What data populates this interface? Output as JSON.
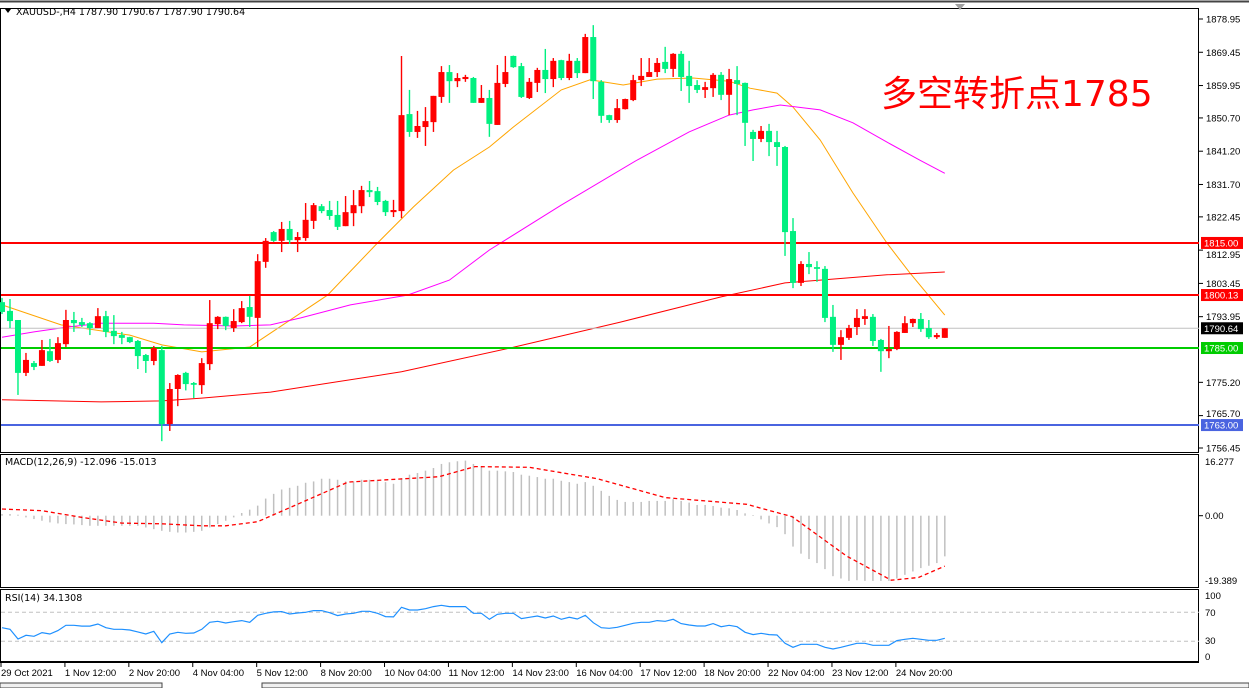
{
  "header": {
    "symbol_line": "XAUUSD-,H4  1787.90 1790.67 1787.90 1790.64",
    "menu_icon": "triangle-down-icon"
  },
  "annotation": {
    "text": "多空转折点1785",
    "color": "#ff0000"
  },
  "colors": {
    "up": "#ff0000",
    "down": "#00f080",
    "ma_fast": "#ffa500",
    "ma_mid": "#ff00ff",
    "ma_slow": "#ff0000",
    "macd_hist": "#c0c0c0",
    "macd_signal": "#ff0000",
    "rsi": "#1e90ff"
  },
  "price_axis": {
    "ticks": [
      "1878.95",
      "1869.45",
      "1859.95",
      "1850.70",
      "1841.20",
      "1831.70",
      "1822.45",
      "1812.95",
      "1803.45",
      "1793.95",
      "1775.20",
      "1765.70",
      "1756.45"
    ],
    "range": [
      1756.45,
      1878.95
    ]
  },
  "levels": [
    {
      "price": 1815.0,
      "label": "1815.00",
      "color": "#ff0000"
    },
    {
      "price": 1800.13,
      "label": "1800.13",
      "color": "#ff0000"
    },
    {
      "price": 1785.0,
      "label": "1785.00",
      "color": "#00cc00"
    },
    {
      "price": 1763.0,
      "label": "1763.00",
      "color": "#4a64e0"
    }
  ],
  "current_price": {
    "price": 1790.64,
    "label": "1790.64",
    "line_color": "#c0c0c0",
    "tag_color": "#000000"
  },
  "time_axis": {
    "labels": [
      "29 Oct 2021",
      "1 Nov 12:00",
      "2 Nov 20:00",
      "4 Nov 04:00",
      "5 Nov 12:00",
      "8 Nov 20:00",
      "10 Nov 04:00",
      "11 Nov 12:00",
      "14 Nov 23:00",
      "16 Nov 04:00",
      "17 Nov 12:00",
      "18 Nov 20:00",
      "22 Nov 04:00",
      "23 Nov 12:00",
      "24 Nov 20:00"
    ],
    "bars_per_label": 8
  },
  "macd": {
    "label": "MACD(12,26,9) -12.096 -15.013",
    "axis": [
      "16.277",
      "0.00",
      "-19.389"
    ],
    "range": [
      -19.389,
      16.277
    ]
  },
  "rsi": {
    "label": "RSI(14) 34.1308",
    "axis": [
      "100",
      "70",
      "30",
      "0"
    ],
    "levels": [
      70,
      30
    ]
  },
  "chart_data": {
    "type": "candlestick",
    "symbol": "XAUUSD-",
    "timeframe": "H4",
    "ylim": [
      1756.45,
      1878.95
    ],
    "candles_ohlc": [
      [
        1798.1,
        1799.3,
        1794.7,
        1795.3
      ],
      [
        1795.6,
        1799.0,
        1790.7,
        1792.7
      ],
      [
        1793.0,
        1793.0,
        1771.6,
        1777.9
      ],
      [
        1777.9,
        1783.6,
        1777.0,
        1781.6
      ],
      [
        1780.7,
        1781.3,
        1778.7,
        1779.6
      ],
      [
        1779.9,
        1787.3,
        1779.9,
        1784.4
      ],
      [
        1784.1,
        1787.6,
        1781.0,
        1781.3
      ],
      [
        1781.6,
        1788.1,
        1780.7,
        1786.4
      ],
      [
        1786.1,
        1795.9,
        1785.3,
        1793.0
      ],
      [
        1793.0,
        1795.3,
        1789.6,
        1792.1
      ],
      [
        1792.4,
        1793.6,
        1791.0,
        1791.6
      ],
      [
        1792.1,
        1792.4,
        1788.7,
        1790.7
      ],
      [
        1790.7,
        1796.4,
        1790.7,
        1794.1
      ],
      [
        1794.1,
        1795.6,
        1788.1,
        1789.6
      ],
      [
        1789.9,
        1794.4,
        1786.1,
        1788.4
      ],
      [
        1788.7,
        1789.6,
        1786.1,
        1787.9
      ],
      [
        1788.1,
        1788.2,
        1786.4,
        1786.7
      ],
      [
        1787.0,
        1787.3,
        1779.0,
        1782.7
      ],
      [
        1783.0,
        1783.3,
        1777.9,
        1781.3
      ],
      [
        1781.3,
        1785.6,
        1780.1,
        1785.0
      ],
      [
        1784.4,
        1785.6,
        1758.4,
        1763.3
      ],
      [
        1763.3,
        1775.0,
        1761.3,
        1773.3
      ],
      [
        1773.3,
        1777.5,
        1768.4,
        1777.3
      ],
      [
        1777.9,
        1778.2,
        1772.9,
        1774.7
      ],
      [
        1775.0,
        1775.3,
        1770.7,
        1774.5
      ],
      [
        1774.4,
        1782.1,
        1771.9,
        1780.7
      ],
      [
        1780.4,
        1798.7,
        1778.7,
        1792.1
      ],
      [
        1791.8,
        1794.1,
        1790.4,
        1793.9
      ],
      [
        1793.9,
        1794.0,
        1790.1,
        1791.3
      ],
      [
        1790.7,
        1796.1,
        1789.6,
        1792.7
      ],
      [
        1792.4,
        1798.4,
        1792.1,
        1796.4
      ],
      [
        1796.7,
        1799.9,
        1791.0,
        1793.9
      ],
      [
        1793.6,
        1811.8,
        1785.3,
        1809.8
      ],
      [
        1809.6,
        1816.4,
        1807.9,
        1815.6
      ],
      [
        1818.1,
        1818.4,
        1815.3,
        1815.6
      ],
      [
        1815.6,
        1821.0,
        1812.4,
        1819.0
      ],
      [
        1819.0,
        1821.3,
        1814.7,
        1815.8
      ],
      [
        1815.8,
        1818.1,
        1812.4,
        1816.7
      ],
      [
        1816.4,
        1826.4,
        1815.6,
        1821.6
      ],
      [
        1821.3,
        1826.4,
        1819.0,
        1825.8
      ],
      [
        1825.5,
        1826.1,
        1823.5,
        1824.1
      ],
      [
        1824.4,
        1827.0,
        1821.6,
        1822.7
      ],
      [
        1823.0,
        1827.0,
        1818.7,
        1819.6
      ],
      [
        1819.8,
        1828.4,
        1819.8,
        1823.8
      ],
      [
        1823.5,
        1830.1,
        1819.8,
        1825.8
      ],
      [
        1825.5,
        1831.3,
        1823.5,
        1830.1
      ],
      [
        1830.1,
        1832.7,
        1828.1,
        1829.5
      ],
      [
        1829.8,
        1831.0,
        1825.8,
        1826.7
      ],
      [
        1827.0,
        1827.3,
        1822.7,
        1823.8
      ],
      [
        1823.8,
        1827.3,
        1822.4,
        1824.4
      ],
      [
        1824.1,
        1868.4,
        1822.1,
        1851.5
      ],
      [
        1851.8,
        1858.7,
        1845.3,
        1846.7
      ],
      [
        1846.7,
        1852.7,
        1845.0,
        1848.4
      ],
      [
        1848.1,
        1853.8,
        1842.7,
        1849.8
      ],
      [
        1849.5,
        1857.0,
        1846.7,
        1857.0
      ],
      [
        1856.7,
        1865.5,
        1855.0,
        1863.8
      ],
      [
        1863.8,
        1865.8,
        1855.0,
        1861.2
      ],
      [
        1861.2,
        1863.5,
        1859.5,
        1862.1
      ],
      [
        1861.8,
        1863.0,
        1861.0,
        1862.4
      ],
      [
        1862.1,
        1862.4,
        1855.0,
        1855.0
      ],
      [
        1855.0,
        1860.1,
        1855.0,
        1856.4
      ],
      [
        1856.4,
        1858.7,
        1845.3,
        1849.0
      ],
      [
        1848.7,
        1865.8,
        1848.7,
        1860.7
      ],
      [
        1860.4,
        1868.4,
        1859.5,
        1863.8
      ],
      [
        1868.4,
        1868.5,
        1865.0,
        1865.2
      ],
      [
        1865.5,
        1866.4,
        1856.4,
        1856.7
      ],
      [
        1856.4,
        1862.1,
        1856.1,
        1861.0
      ],
      [
        1860.7,
        1865.0,
        1858.1,
        1864.4
      ],
      [
        1864.4,
        1870.4,
        1857.8,
        1861.8
      ],
      [
        1861.8,
        1867.8,
        1859.5,
        1867.0
      ],
      [
        1867.2,
        1867.3,
        1861.5,
        1862.1
      ],
      [
        1862.1,
        1869.0,
        1861.5,
        1867.0
      ],
      [
        1867.0,
        1867.8,
        1862.1,
        1863.5
      ],
      [
        1863.5,
        1874.7,
        1863.5,
        1873.8
      ],
      [
        1873.8,
        1877.2,
        1856.1,
        1861.2
      ],
      [
        1861.0,
        1861.5,
        1849.3,
        1851.3
      ],
      [
        1851.5,
        1851.6,
        1849.3,
        1850.1
      ],
      [
        1850.1,
        1856.1,
        1849.3,
        1853.5
      ],
      [
        1853.2,
        1856.2,
        1853.1,
        1856.1
      ],
      [
        1855.8,
        1863.0,
        1855.5,
        1861.5
      ],
      [
        1861.5,
        1867.8,
        1859.8,
        1862.7
      ],
      [
        1862.4,
        1867.8,
        1862.4,
        1863.8
      ],
      [
        1863.8,
        1867.8,
        1862.4,
        1866.4
      ],
      [
        1866.7,
        1871.0,
        1863.5,
        1864.7
      ],
      [
        1864.7,
        1869.2,
        1862.4,
        1869.0
      ],
      [
        1869.0,
        1869.8,
        1858.4,
        1862.4
      ],
      [
        1862.7,
        1867.0,
        1855.0,
        1859.8
      ],
      [
        1860.1,
        1861.5,
        1857.8,
        1858.7
      ],
      [
        1858.7,
        1861.0,
        1856.4,
        1859.5
      ],
      [
        1859.2,
        1863.5,
        1856.7,
        1863.0
      ],
      [
        1863.0,
        1863.8,
        1855.8,
        1857.3
      ],
      [
        1857.3,
        1864.7,
        1851.5,
        1861.8
      ],
      [
        1861.5,
        1865.5,
        1851.5,
        1860.4
      ],
      [
        1860.7,
        1860.8,
        1842.7,
        1849.3
      ],
      [
        1846.7,
        1847.3,
        1838.4,
        1844.7
      ],
      [
        1844.7,
        1848.4,
        1843.8,
        1847.0
      ],
      [
        1847.0,
        1849.0,
        1839.8,
        1843.8
      ],
      [
        1843.8,
        1847.0,
        1837.0,
        1842.4
      ],
      [
        1842.4,
        1842.7,
        1811.3,
        1818.1
      ],
      [
        1818.4,
        1822.1,
        1802.1,
        1803.6
      ],
      [
        1803.6,
        1809.8,
        1802.7,
        1809.0
      ],
      [
        1809.0,
        1812.4,
        1806.1,
        1808.1
      ],
      [
        1808.1,
        1809.8,
        1803.9,
        1807.6
      ],
      [
        1807.6,
        1808.4,
        1792.4,
        1793.6
      ],
      [
        1793.9,
        1797.3,
        1783.9,
        1785.9
      ],
      [
        1785.9,
        1790.1,
        1781.6,
        1788.1
      ],
      [
        1787.9,
        1791.6,
        1787.3,
        1790.7
      ],
      [
        1791.0,
        1796.1,
        1788.7,
        1793.6
      ],
      [
        1793.3,
        1796.1,
        1791.6,
        1794.1
      ],
      [
        1793.9,
        1794.7,
        1785.6,
        1787.0
      ],
      [
        1787.3,
        1787.6,
        1778.2,
        1784.1
      ],
      [
        1784.1,
        1791.3,
        1782.1,
        1784.7
      ],
      [
        1784.7,
        1789.8,
        1784.4,
        1789.6
      ],
      [
        1789.3,
        1794.1,
        1789.3,
        1792.1
      ],
      [
        1792.1,
        1793.4,
        1791.0,
        1793.3
      ],
      [
        1793.3,
        1795.0,
        1789.6,
        1790.4
      ],
      [
        1790.7,
        1793.0,
        1787.6,
        1788.1
      ],
      [
        1788.1,
        1789.3,
        1787.6,
        1788.7
      ],
      [
        1787.9,
        1790.67,
        1787.9,
        1790.64
      ]
    ],
    "moving_averages": [
      {
        "color": "#ffa500",
        "points": [
          [
            0,
            1797.3
          ],
          [
            7.4,
            1791.6
          ],
          [
            16,
            1788.7
          ],
          [
            20,
            1785.9
          ],
          [
            25,
            1783.9
          ],
          [
            31,
            1785.3
          ],
          [
            40.75,
            1800.1
          ],
          [
            47,
            1815.0
          ],
          [
            51.5,
            1825.3
          ],
          [
            56.5,
            1835.8
          ],
          [
            61,
            1842.4
          ],
          [
            64,
            1848.1
          ],
          [
            70,
            1858.7
          ],
          [
            73.6,
            1861.6
          ],
          [
            77.75,
            1860.1
          ],
          [
            82,
            1861.8
          ],
          [
            86.5,
            1862.1
          ],
          [
            91,
            1861.2
          ],
          [
            93.6,
            1859.2
          ],
          [
            97,
            1857.8
          ],
          [
            99,
            1853.8
          ],
          [
            102.4,
            1844.4
          ],
          [
            106.5,
            1829.3
          ],
          [
            110.75,
            1815.0
          ],
          [
            113.6,
            1806.5
          ],
          [
            118,
            1794.4
          ]
        ]
      },
      {
        "color": "#ff00ff",
        "points": [
          [
            0,
            1788.1
          ],
          [
            4,
            1789.6
          ],
          [
            8.25,
            1791.0
          ],
          [
            12.4,
            1792.1
          ],
          [
            19,
            1792.1
          ],
          [
            22.75,
            1791.6
          ],
          [
            29,
            1791.3
          ],
          [
            33.6,
            1791.6
          ],
          [
            37.4,
            1793.6
          ],
          [
            43.6,
            1797.3
          ],
          [
            50.75,
            1800.1
          ],
          [
            56,
            1804.4
          ],
          [
            61,
            1813.0
          ],
          [
            70,
            1825.8
          ],
          [
            79.5,
            1838.7
          ],
          [
            86,
            1846.7
          ],
          [
            91,
            1851.5
          ],
          [
            94,
            1853.0
          ],
          [
            97.4,
            1854.4
          ],
          [
            102.4,
            1853.0
          ],
          [
            106.5,
            1849.3
          ],
          [
            110.75,
            1843.8
          ],
          [
            114.9,
            1838.6
          ],
          [
            118,
            1834.9
          ]
        ]
      },
      {
        "color": "#ff0000",
        "points": [
          [
            0,
            1770.2
          ],
          [
            12.4,
            1769.6
          ],
          [
            20,
            1769.9
          ],
          [
            25,
            1770.7
          ],
          [
            33.6,
            1772.4
          ],
          [
            50,
            1778.2
          ],
          [
            63.6,
            1785.0
          ],
          [
            77.4,
            1792.4
          ],
          [
            90,
            1799.6
          ],
          [
            98,
            1803.6
          ],
          [
            102.4,
            1804.4
          ],
          [
            110.75,
            1805.9
          ],
          [
            118,
            1806.7
          ]
        ]
      }
    ],
    "macd_histogram": [
      0.5,
      0.5,
      0.3,
      -0.5,
      -1,
      -1.5,
      -2,
      -2.3,
      -2.5,
      -2.6,
      -2.8,
      -3,
      -3,
      -3,
      -3,
      -3,
      -3,
      -3,
      -3.5,
      -4,
      -4.5,
      -4.8,
      -5,
      -5,
      -4.8,
      -4.5,
      -3.5,
      -2.5,
      -1.5,
      -0.5,
      0.8,
      1.8,
      3.0,
      5.1,
      6.5,
      7.8,
      8.3,
      8.9,
      9.8,
      10.2,
      11.0,
      11.0,
      10.7,
      10.2,
      10.2,
      10.7,
      10.7,
      10.7,
      10.0,
      9.5,
      11.2,
      12.2,
      12.7,
      13.4,
      14.2,
      15.4,
      15.9,
      16.2,
      16.4,
      15.4,
      14.7,
      13.4,
      13.4,
      13.2,
      13.0,
      12.2,
      11.9,
      11.5,
      11.0,
      11.0,
      10.4,
      10.0,
      9.5,
      10.0,
      8.9,
      7.4,
      5.9,
      4.7,
      4.1,
      4.1,
      4.1,
      4.4,
      4.4,
      4.4,
      4.9,
      4.4,
      3.9,
      3.2,
      3.2,
      2.9,
      2.4,
      2.2,
      1.7,
      0.7,
      0.2,
      -1.1,
      -2.3,
      -3.4,
      -5.5,
      -9.2,
      -11.3,
      -12.9,
      -14.1,
      -15.9,
      -18.0,
      -18.7,
      -19.4,
      -19.2,
      -19.4,
      -19.4,
      -19.4,
      -19.4,
      -18.7,
      -17.6,
      -16.6,
      -15.6,
      -14.9,
      -14.1,
      -12.1
    ],
    "macd_signal_points": [
      [
        0,
        2
      ],
      [
        5,
        1.5
      ],
      [
        10,
        -0.5
      ],
      [
        15,
        -2.2
      ],
      [
        20,
        -2.4
      ],
      [
        25,
        -3
      ],
      [
        28,
        -3
      ],
      [
        32,
        -1.8
      ],
      [
        43.3,
        10
      ],
      [
        54.7,
        11.6
      ],
      [
        59.2,
        14.6
      ],
      [
        66,
        14.4
      ],
      [
        74.5,
        11
      ],
      [
        83,
        5.4
      ],
      [
        93.2,
        3.4
      ],
      [
        98.9,
        -0.3
      ],
      [
        105.7,
        -12
      ],
      [
        111.3,
        -19.2
      ],
      [
        114.7,
        -18.4
      ],
      [
        118,
        -15.0
      ]
    ],
    "rsi": [
      48.8,
      46.5,
      33.2,
      38.3,
      36.9,
      42,
      40,
      44.7,
      52,
      52,
      51,
      51,
      53.9,
      48.8,
      46.5,
      46.5,
      45.6,
      42.9,
      40,
      43.8,
      28.1,
      40,
      42.4,
      41,
      41.5,
      46.5,
      56.2,
      57.6,
      55.3,
      57.1,
      58.5,
      56.2,
      65.9,
      68.6,
      70.5,
      70.9,
      67.7,
      69.1,
      70,
      72.3,
      72.3,
      69.5,
      65.4,
      67.7,
      68.6,
      71.4,
      71.4,
      68.6,
      64,
      63.6,
      76.9,
      73.2,
      73.2,
      75,
      77.8,
      79.7,
      77.8,
      77.8,
      77.8,
      68.6,
      68.6,
      60.3,
      67.2,
      68.6,
      68.6,
      61.3,
      63.1,
      64.9,
      62.2,
      64.9,
      60.3,
      63.1,
      60.8,
      65.9,
      55.7,
      48.8,
      47.9,
      49.3,
      52,
      54.8,
      56.2,
      56.2,
      58.5,
      57.6,
      60.3,
      54.4,
      52.5,
      51.1,
      51.1,
      54.4,
      50.2,
      52,
      50.2,
      42.4,
      39.2,
      41,
      39.2,
      38.7,
      27.2,
      21.7,
      25.8,
      25.8,
      25.8,
      21.7,
      19.4,
      21.7,
      24.5,
      27.2,
      27.2,
      24.5,
      24.5,
      24.5,
      30.9,
      32.7,
      34.1,
      32.7,
      31.4,
      31.4,
      34.1
    ]
  }
}
